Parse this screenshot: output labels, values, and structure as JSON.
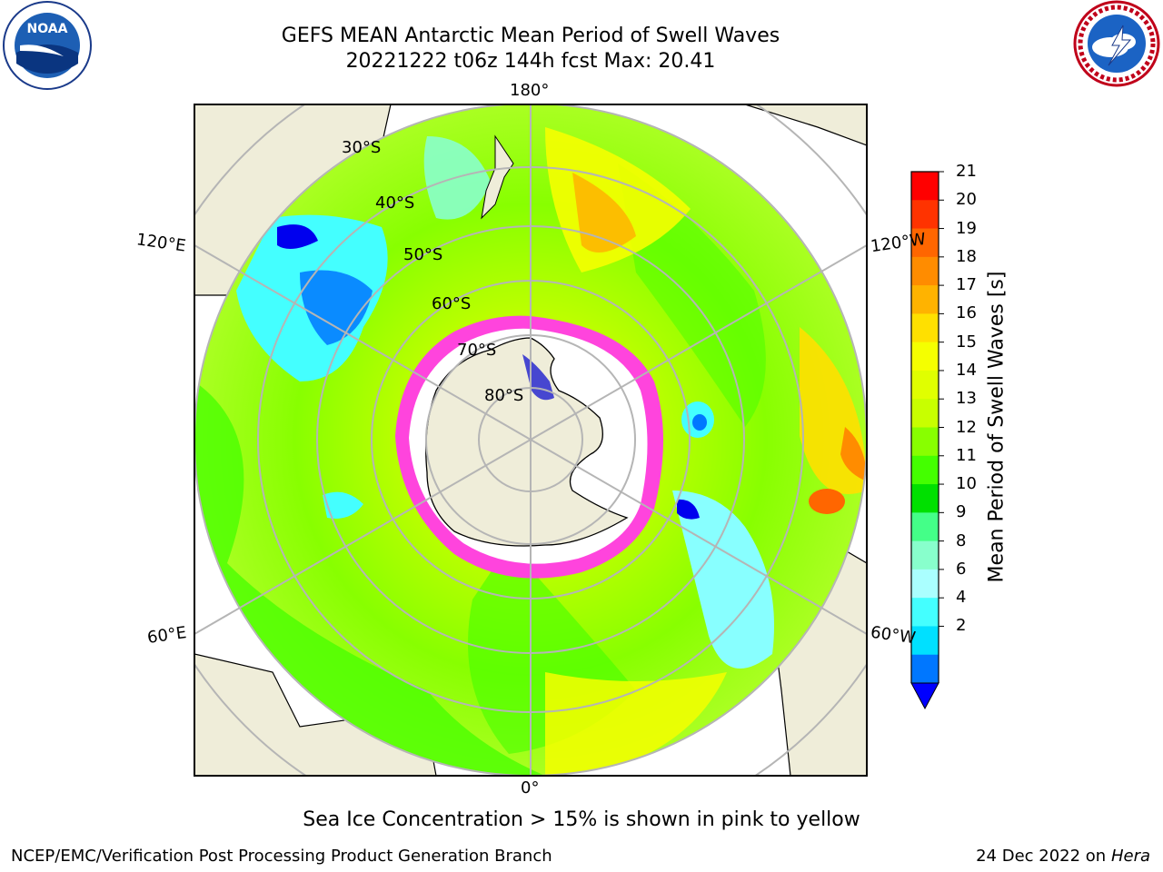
{
  "title": {
    "line1": "GEFS MEAN Antarctic Mean Period of Swell Waves",
    "line2": "20221222 t06z 144h fcst   Max: 20.41"
  },
  "map": {
    "longitude_labels": {
      "top": "180°",
      "bottom": "0°",
      "left_upper": "120°E",
      "left_lower": "60°E",
      "right_upper": "120°W",
      "right_lower": "60°W"
    },
    "latitude_labels": [
      "30°S",
      "40°S",
      "50°S",
      "60°S",
      "70°S",
      "80°S"
    ]
  },
  "colorbar": {
    "label": "Mean Period of Swell Waves [s]",
    "ticks": [
      "21",
      "20",
      "19",
      "18",
      "17",
      "16",
      "15",
      "14",
      "13",
      "12",
      "11",
      "10",
      "9",
      "8",
      "6",
      "4",
      "2"
    ],
    "colors": [
      "#ff0000",
      "#ff3300",
      "#ff6600",
      "#ff8c00",
      "#ffb300",
      "#ffe000",
      "#f5ff00",
      "#e0ff00",
      "#c8ff00",
      "#88ff00",
      "#44ff00",
      "#00e000",
      "#44ff88",
      "#88ffcc",
      "#aaffff",
      "#44ffff",
      "#00e0ff",
      "#0077ff"
    ],
    "extend_color": "#0000ff"
  },
  "land_color": "#efedd9",
  "ice_colors": [
    "#ff44dd",
    "#ffffff"
  ],
  "footer": {
    "note": "Sea Ice Concentration > 15% is shown in pink to yellow",
    "credit": "NCEP/EMC/Verification Post Processing Product Generation Branch",
    "date": "24 Dec 2022 on",
    "machine": "Hera"
  },
  "logos": {
    "left": "NOAA",
    "right": "NATIONAL WEATHER SERVICE"
  }
}
